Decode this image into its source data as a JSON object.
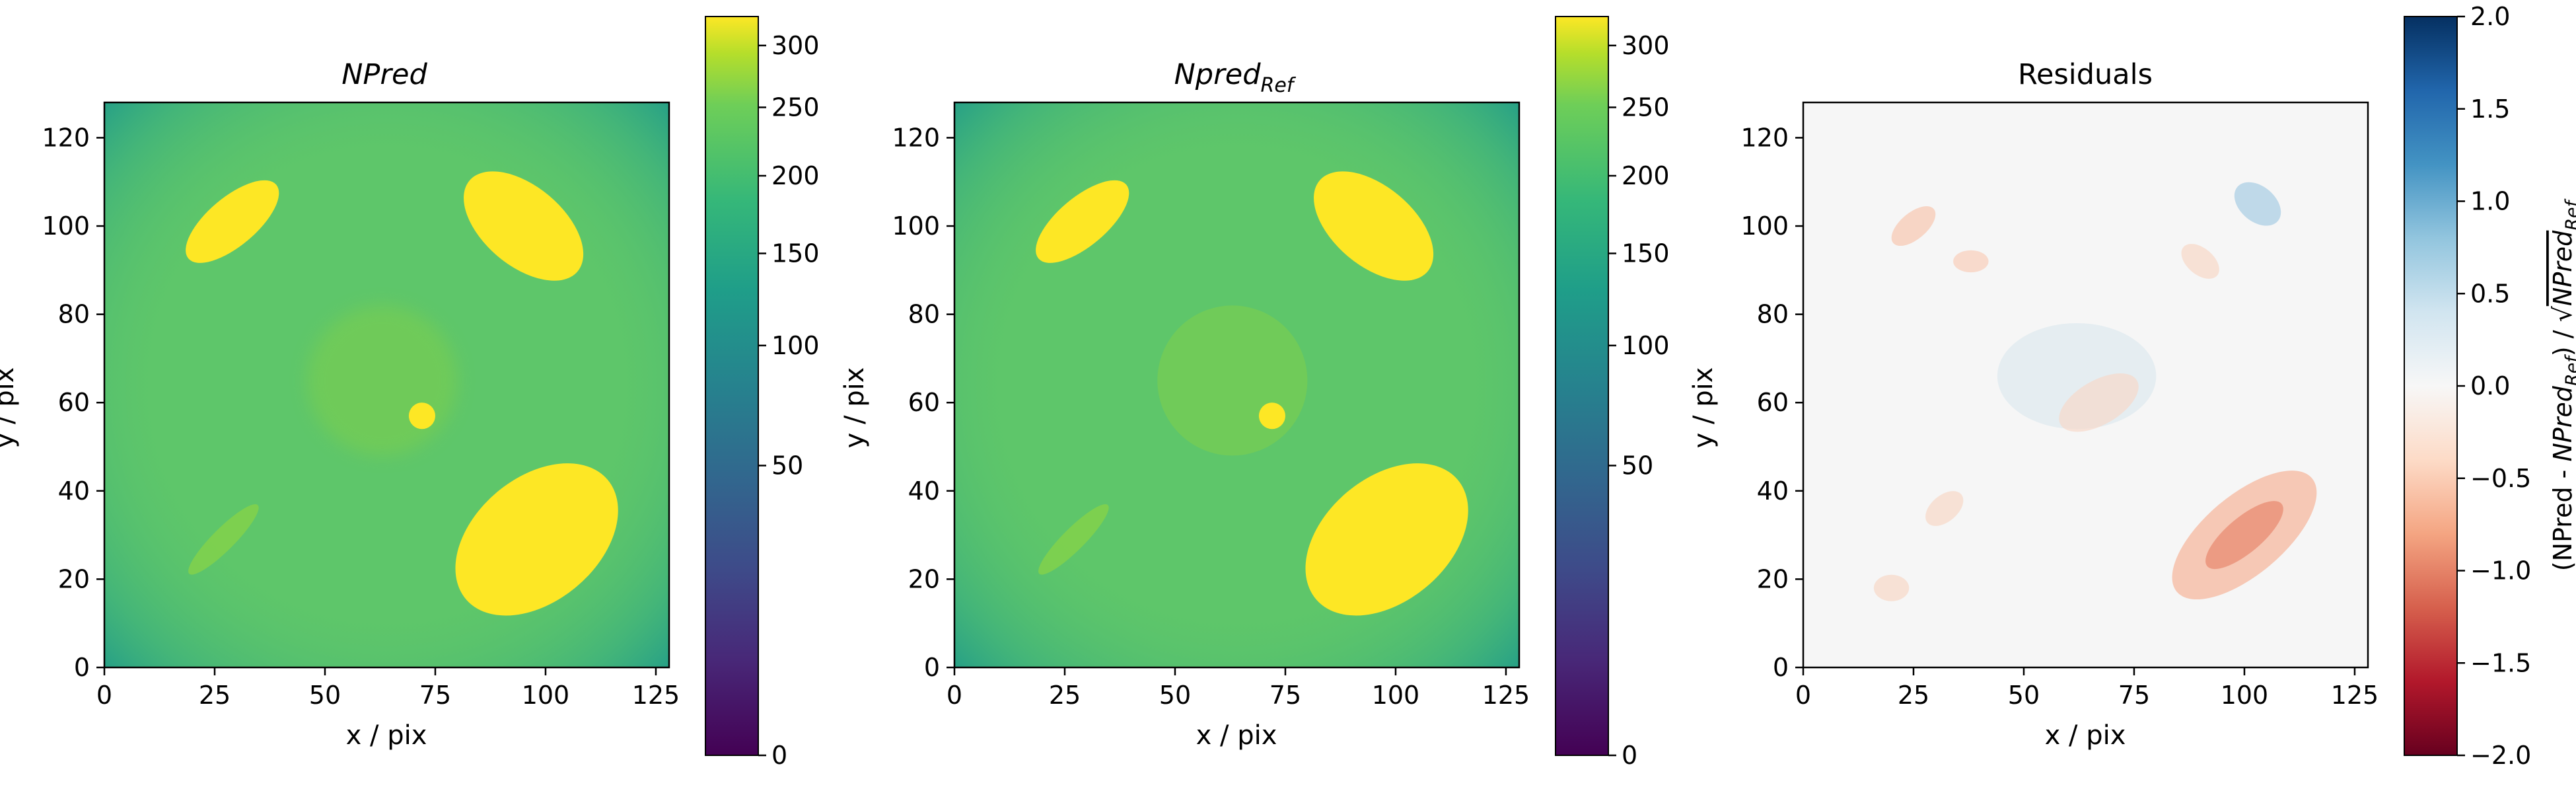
{
  "chart_data": [
    {
      "type": "heatmap",
      "title": "NPred",
      "xlabel": "x / pix",
      "ylabel": "y / pix",
      "xlim": [
        0,
        128
      ],
      "ylim": [
        0,
        128
      ],
      "xticks": [
        "0",
        "25",
        "50",
        "75",
        "100",
        "125"
      ],
      "yticks": [
        "0",
        "20",
        "40",
        "60",
        "80",
        "100",
        "120"
      ],
      "colormap": "viridis",
      "color_scale": "sqrt",
      "colorbar": {
        "range": [
          0,
          325
        ],
        "ticks": [
          "0",
          "50",
          "100",
          "150",
          "200",
          "250",
          "300"
        ],
        "label": ""
      },
      "features": [
        {
          "shape": "diffuse background",
          "value": 165
        },
        {
          "shape": "elliptical disk",
          "center": [
            29,
            101
          ],
          "value": 325
        },
        {
          "shape": "elliptical disk",
          "center": [
            95,
            100
          ],
          "value": 325
        },
        {
          "shape": "elliptical disk",
          "center": [
            98,
            29
          ],
          "value": 325
        },
        {
          "shape": "faint ellipse",
          "center": [
            27,
            29
          ],
          "value": 195
        },
        {
          "shape": "faint disk",
          "center": [
            63,
            65
          ],
          "value": 185
        },
        {
          "shape": "point source",
          "center": [
            72,
            57
          ],
          "value": 300
        }
      ]
    },
    {
      "type": "heatmap",
      "title": "Npred",
      "title_subscript": "Ref",
      "xlabel": "x / pix",
      "ylabel": "y / pix",
      "xlim": [
        0,
        128
      ],
      "ylim": [
        0,
        128
      ],
      "xticks": [
        "0",
        "25",
        "50",
        "75",
        "100",
        "125"
      ],
      "yticks": [
        "0",
        "20",
        "40",
        "60",
        "80",
        "100",
        "120"
      ],
      "colormap": "viridis",
      "color_scale": "sqrt",
      "colorbar": {
        "range": [
          0,
          325
        ],
        "ticks": [
          "0",
          "50",
          "100",
          "150",
          "200",
          "250",
          "300"
        ],
        "label": ""
      }
    },
    {
      "type": "heatmap",
      "title": "Residuals",
      "xlabel": "x / pix",
      "ylabel": "y / pix",
      "xlim": [
        0,
        128
      ],
      "ylim": [
        0,
        128
      ],
      "xticks": [
        "0",
        "25",
        "50",
        "75",
        "100",
        "125"
      ],
      "yticks": [
        "0",
        "20",
        "40",
        "60",
        "80",
        "100",
        "120"
      ],
      "colormap": "RdBu",
      "colorbar": {
        "range": [
          -2.0,
          2.0
        ],
        "ticks": [
          "2.0",
          "1.5",
          "1.0",
          "0.5",
          "0.0",
          "−0.5",
          "−1.0",
          "−1.5",
          "−2.0"
        ],
        "label": "(NPred - NPred_Ref) / √NPred_Ref"
      },
      "features": [
        {
          "shape": "residual blob",
          "center": [
            25,
            100
          ],
          "value": -0.2
        },
        {
          "shape": "residual blob",
          "center": [
            38,
            92
          ],
          "value": -0.2
        },
        {
          "shape": "residual blob",
          "center": [
            103,
            105
          ],
          "value": 0.4
        },
        {
          "shape": "residual blob",
          "center": [
            90,
            92
          ],
          "value": -0.2
        },
        {
          "shape": "residual blob",
          "center": [
            60,
            70
          ],
          "value": 0.15
        },
        {
          "shape": "residual blob",
          "center": [
            68,
            60
          ],
          "value": -0.2
        },
        {
          "shape": "elongated residual",
          "center": [
            100,
            30
          ],
          "value": -0.6
        },
        {
          "shape": "residual blob",
          "center": [
            32,
            36
          ],
          "value": -0.2
        },
        {
          "shape": "residual blob",
          "center": [
            20,
            18
          ],
          "value": -0.2
        }
      ]
    }
  ]
}
